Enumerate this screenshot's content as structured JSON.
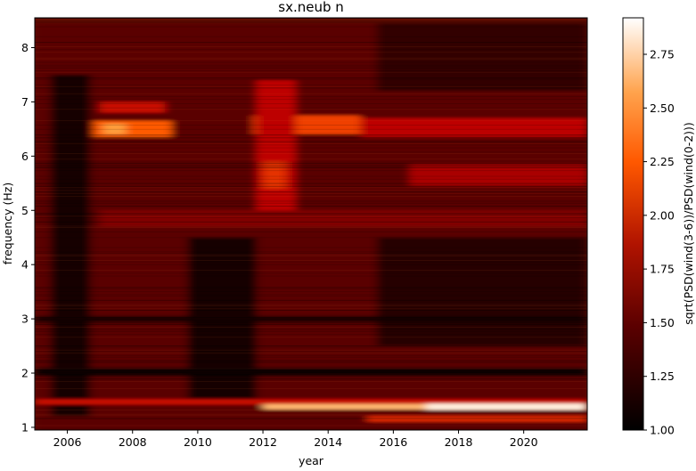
{
  "chart_data": {
    "type": "heatmap",
    "title": "sx.neub n",
    "xlabel": "year",
    "ylabel": "frequency (Hz)",
    "xlim": [
      2005.0,
      2021.95
    ],
    "ylim": [
      0.95,
      8.55
    ],
    "x_ticks": [
      2006,
      2008,
      2010,
      2012,
      2014,
      2016,
      2018,
      2020
    ],
    "y_ticks": [
      1,
      2,
      3,
      4,
      5,
      6,
      7,
      8
    ],
    "colormap": "gist_heat",
    "colorbar": {
      "label": "sqrt(PSD(wind(3-6))/PSD(wind(0-2)))",
      "min": 1.0,
      "max": 2.92,
      "ticks": [
        1.0,
        1.25,
        1.5,
        1.75,
        2.0,
        2.25,
        2.5,
        2.75
      ],
      "tick_labels": [
        "1.00",
        "1.25",
        "1.50",
        "1.75",
        "2.00",
        "2.25",
        "2.50",
        "2.75"
      ]
    },
    "features": [
      {
        "x": [
          2005.0,
          2021.95
        ],
        "y": [
          8.45,
          0.95
        ],
        "value": 1.45
      },
      {
        "x": [
          2005.5,
          2006.7
        ],
        "y": [
          7.5,
          1.2
        ],
        "value": 1.1
      },
      {
        "x": [
          2009.7,
          2011.8
        ],
        "y": [
          4.5,
          1.5
        ],
        "value": 1.1
      },
      {
        "x": [
          2015.5,
          2021.95
        ],
        "y": [
          4.5,
          2.5
        ],
        "value": 1.2
      },
      {
        "x": [
          2015.5,
          2021.95
        ],
        "y": [
          8.45,
          7.2
        ],
        "value": 1.25
      },
      {
        "x": [
          2006.8,
          2009.2
        ],
        "y": [
          6.65,
          6.35
        ],
        "value": 2.3
      },
      {
        "x": [
          2007.1,
          2007.8
        ],
        "y": [
          6.6,
          6.4
        ],
        "value": 2.55
      },
      {
        "x": [
          2011.7,
          2015.0
        ],
        "y": [
          6.75,
          6.4
        ],
        "value": 2.2
      },
      {
        "x": [
          2012.1,
          2012.9
        ],
        "y": [
          6.75,
          6.35
        ],
        "value": 2.45
      },
      {
        "x": [
          2011.8,
          2013.0
        ],
        "y": [
          7.4,
          4.8
        ],
        "value": 1.95
      },
      {
        "x": [
          2012.0,
          2012.7
        ],
        "y": [
          5.9,
          5.4
        ],
        "value": 2.15
      },
      {
        "x": [
          2015.0,
          2021.95
        ],
        "y": [
          6.7,
          6.35
        ],
        "value": 1.95
      },
      {
        "x": [
          2016.5,
          2021.95
        ],
        "y": [
          5.85,
          5.45
        ],
        "value": 1.85
      },
      {
        "x": [
          2007.0,
          2021.95
        ],
        "y": [
          5.0,
          4.7
        ],
        "value": 1.65
      },
      {
        "x": [
          2007.0,
          2009.0
        ],
        "y": [
          7.0,
          6.8
        ],
        "value": 2.0
      },
      {
        "x": [
          2005.0,
          2021.95
        ],
        "y": [
          1.52,
          1.42
        ],
        "value": 2.0
      },
      {
        "x": [
          2012.0,
          2021.95
        ],
        "y": [
          1.43,
          1.33
        ],
        "value": 2.65
      },
      {
        "x": [
          2017.0,
          2021.95
        ],
        "y": [
          1.44,
          1.32
        ],
        "value": 2.85
      },
      {
        "x": [
          2015.2,
          2021.95
        ],
        "y": [
          1.21,
          1.1
        ],
        "value": 2.1
      },
      {
        "x": [
          2005.0,
          2021.95
        ],
        "y": [
          2.1,
          1.95
        ],
        "value": 1.05
      },
      {
        "x": [
          2005.0,
          2021.95
        ],
        "y": [
          3.05,
          2.95
        ],
        "value": 1.1
      }
    ]
  }
}
